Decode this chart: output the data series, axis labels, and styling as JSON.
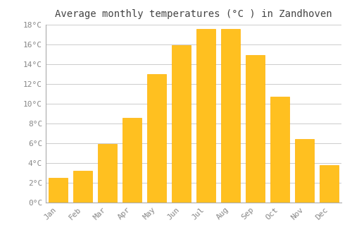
{
  "title": "Average monthly temperatures (°C ) in Zandhoven",
  "months": [
    "Jan",
    "Feb",
    "Mar",
    "Apr",
    "May",
    "Jun",
    "Jul",
    "Aug",
    "Sep",
    "Oct",
    "Nov",
    "Dec"
  ],
  "values": [
    2.5,
    3.2,
    5.9,
    8.6,
    13.0,
    15.9,
    17.6,
    17.6,
    14.9,
    10.7,
    6.4,
    3.8
  ],
  "bar_color": "#FFC020",
  "bar_edge_color": "#FFB000",
  "background_color": "#FFFFFF",
  "grid_color": "#CCCCCC",
  "text_color": "#888888",
  "spine_color": "#AAAAAA",
  "ylim": [
    0,
    18
  ],
  "yticks": [
    0,
    2,
    4,
    6,
    8,
    10,
    12,
    14,
    16,
    18
  ],
  "title_fontsize": 10,
  "tick_fontsize": 8,
  "bar_width": 0.75
}
